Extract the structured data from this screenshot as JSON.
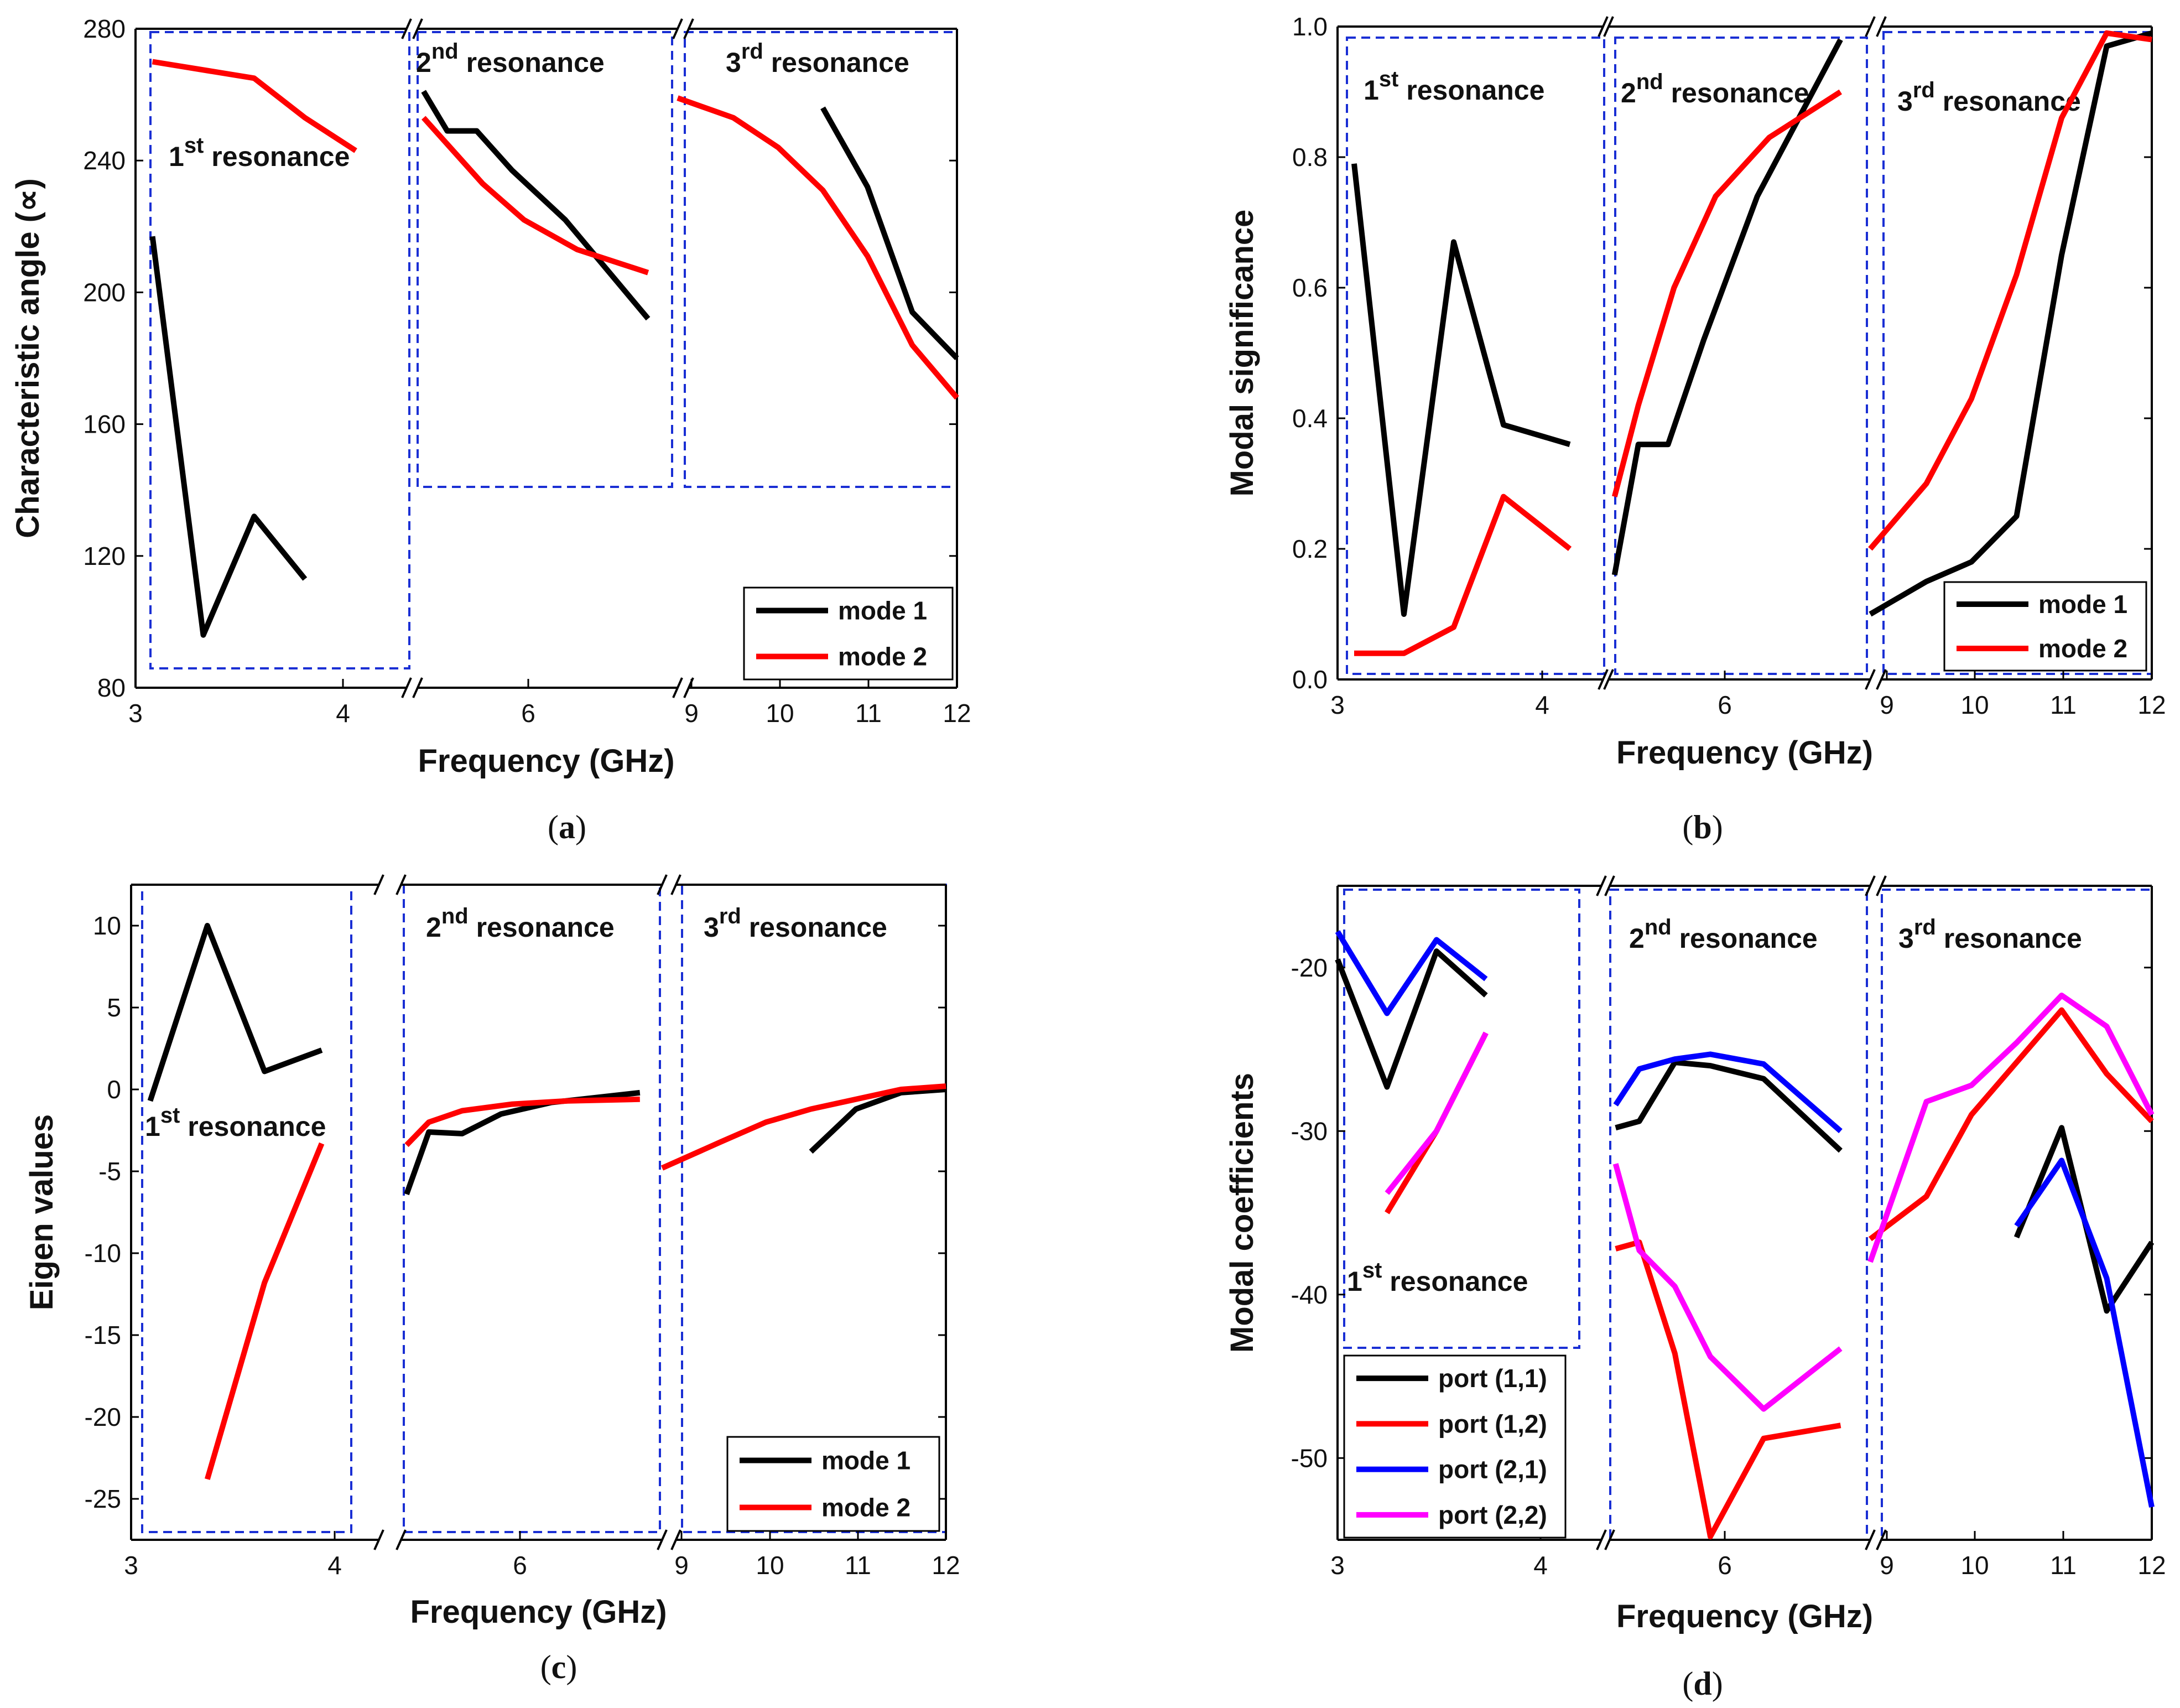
{
  "chart_data": [
    {
      "type": "line",
      "caption_letter": "a",
      "ylabel": "Characteristic angle (∝)",
      "xlabel": "Frequency (GHz)",
      "ylim": [
        80,
        280
      ],
      "yticks": [
        80,
        120,
        160,
        200,
        240,
        280
      ],
      "xticks": [
        "3",
        "4",
        "6",
        "9",
        "10",
        "11",
        "12"
      ],
      "segments": [
        [
          3,
          4.6
        ],
        [
          4.6,
          9
        ],
        [
          9,
          12
        ]
      ],
      "annotations": [
        {
          "text": "1",
          "sup": "st",
          "rest": " resonance"
        },
        {
          "text": "2",
          "sup": "nd",
          "rest": " resonance"
        },
        {
          "text": "3",
          "sup": "rd",
          "rest": " resonance"
        }
      ],
      "legend": [
        "mode 1",
        "mode 2"
      ],
      "series": [
        {
          "name": "mode 1",
          "color": "#000000",
          "points": [
            [
              3.1,
              217
            ],
            [
              3.4,
              96
            ],
            [
              3.7,
              132
            ],
            [
              4.0,
              113
            ]
          ]
        },
        {
          "name": "mode 2",
          "color": "#ff0000",
          "points": [
            [
              3.1,
              270
            ],
            [
              3.7,
              265
            ],
            [
              4.0,
              253
            ],
            [
              4.3,
              243
            ]
          ]
        },
        {
          "name": "mode 1",
          "color": "#000000",
          "points": [
            [
              4.7,
              261
            ],
            [
              5.1,
              249
            ],
            [
              5.6,
              249
            ],
            [
              6.2,
              237
            ],
            [
              7.1,
              222
            ],
            [
              8.5,
              192
            ]
          ]
        },
        {
          "name": "mode 2",
          "color": "#ff0000",
          "points": [
            [
              4.7,
              253
            ],
            [
              5.1,
              245
            ],
            [
              5.7,
              233
            ],
            [
              6.4,
              222
            ],
            [
              7.3,
              213
            ],
            [
              8.5,
              206
            ]
          ]
        },
        {
          "name": "mode 1",
          "color": "#000000",
          "points": [
            [
              10.5,
              256
            ],
            [
              11.0,
              232
            ],
            [
              11.5,
              194
            ],
            [
              12.0,
              180
            ]
          ]
        },
        {
          "name": "mode 2",
          "color": "#ff0000",
          "points": [
            [
              9.0,
              259
            ],
            [
              9.5,
              253
            ],
            [
              10.0,
              244
            ],
            [
              10.5,
              231
            ],
            [
              11.0,
              211
            ],
            [
              11.5,
              184
            ],
            [
              12.0,
              168
            ]
          ]
        }
      ]
    },
    {
      "type": "line",
      "caption_letter": "b",
      "ylabel": "Modal significance",
      "xlabel": "Frequency (GHz)",
      "ylim": [
        0.0,
        1.0
      ],
      "yticks": [
        "0.0",
        "0.2",
        "0.4",
        "0.6",
        "0.8",
        "1.0"
      ],
      "xticks": [
        "3",
        "4",
        "6",
        "9",
        "10",
        "11",
        "12"
      ],
      "segments": [
        [
          3,
          4.6
        ],
        [
          4.6,
          9
        ],
        [
          9,
          12
        ]
      ],
      "annotations": [
        {
          "text": "1",
          "sup": "st",
          "rest": " resonance"
        },
        {
          "text": "2",
          "sup": "nd",
          "rest": " resonance"
        },
        {
          "text": "3",
          "sup": "rd",
          "rest": " resonance"
        }
      ],
      "legend": [
        "mode 1",
        "mode 2"
      ],
      "series": [
        {
          "name": "mode 1",
          "color": "#000000",
          "points": [
            [
              3.1,
              0.79
            ],
            [
              3.4,
              0.1
            ],
            [
              3.7,
              0.67
            ],
            [
              4.0,
              0.39
            ],
            [
              4.4,
              0.36
            ]
          ]
        },
        {
          "name": "mode 2",
          "color": "#ff0000",
          "points": [
            [
              3.1,
              0.04
            ],
            [
              3.4,
              0.04
            ],
            [
              3.7,
              0.08
            ],
            [
              4.0,
              0.28
            ],
            [
              4.4,
              0.2
            ]
          ]
        },
        {
          "name": "mode 1",
          "color": "#000000",
          "points": [
            [
              4.7,
              0.16
            ],
            [
              5.1,
              0.36
            ],
            [
              5.6,
              0.36
            ],
            [
              6.2,
              0.52
            ],
            [
              7.1,
              0.74
            ],
            [
              8.5,
              0.98
            ]
          ]
        },
        {
          "name": "mode 2",
          "color": "#ff0000",
          "points": [
            [
              4.7,
              0.28
            ],
            [
              5.1,
              0.42
            ],
            [
              5.7,
              0.6
            ],
            [
              6.4,
              0.74
            ],
            [
              7.3,
              0.83
            ],
            [
              8.5,
              0.9
            ]
          ]
        },
        {
          "name": "mode 1",
          "color": "#000000",
          "points": [
            [
              9.0,
              0.1
            ],
            [
              9.5,
              0.15
            ],
            [
              10.0,
              0.18
            ],
            [
              10.5,
              0.25
            ],
            [
              11.0,
              0.65
            ],
            [
              11.5,
              0.97
            ],
            [
              12.0,
              0.99
            ]
          ]
        },
        {
          "name": "mode 2",
          "color": "#ff0000",
          "points": [
            [
              9.0,
              0.2
            ],
            [
              9.5,
              0.3
            ],
            [
              10.0,
              0.43
            ],
            [
              10.5,
              0.62
            ],
            [
              11.0,
              0.86
            ],
            [
              11.5,
              0.99
            ],
            [
              12.0,
              0.98
            ]
          ]
        }
      ]
    },
    {
      "type": "line",
      "caption_letter": "c",
      "ylabel": "Eigen values",
      "xlabel": "Frequency (GHz)",
      "ylim": [
        -27.5,
        12.5
      ],
      "yticks": [
        "-25",
        "-20",
        "-15",
        "-10",
        "-5",
        "0",
        "5",
        "10"
      ],
      "xticks": [
        "3",
        "4",
        "6",
        "9",
        "10",
        "11",
        "12"
      ],
      "segments": [
        [
          3,
          4.3
        ],
        [
          4.3,
          9
        ],
        [
          9,
          12
        ]
      ],
      "annotations": [
        {
          "text": "1",
          "sup": "st",
          "rest": " resonance"
        },
        {
          "text": "2",
          "sup": "nd",
          "rest": " resonance"
        },
        {
          "text": "3",
          "sup": "rd",
          "rest": " resonance"
        }
      ],
      "legend": [
        "mode 1",
        "mode 2"
      ],
      "series": [
        {
          "name": "mode 1",
          "color": "#000000",
          "points": [
            [
              3.1,
              -0.7
            ],
            [
              3.4,
              10.0
            ],
            [
              3.7,
              1.1
            ],
            [
              4.0,
              2.4
            ]
          ]
        },
        {
          "name": "mode 2",
          "color": "#ff0000",
          "points": [
            [
              3.4,
              -23.8
            ],
            [
              3.7,
              -11.8
            ],
            [
              4.0,
              -3.3
            ]
          ]
        },
        {
          "name": "mode 1",
          "color": "#000000",
          "points": [
            [
              4.4,
              -6.4
            ],
            [
              4.8,
              -2.6
            ],
            [
              5.4,
              -2.7
            ],
            [
              6.1,
              -1.5
            ],
            [
              7.0,
              -0.8
            ],
            [
              8.6,
              -0.2
            ]
          ]
        },
        {
          "name": "mode 2",
          "color": "#ff0000",
          "points": [
            [
              4.4,
              -3.4
            ],
            [
              4.8,
              -2.0
            ],
            [
              5.4,
              -1.3
            ],
            [
              6.3,
              -0.9
            ],
            [
              7.3,
              -0.7
            ],
            [
              8.6,
              -0.6
            ]
          ]
        },
        {
          "name": "mode 1",
          "color": "#000000",
          "points": [
            [
              10.5,
              -3.8
            ],
            [
              11.0,
              -1.2
            ],
            [
              11.5,
              -0.2
            ],
            [
              12.0,
              0.0
            ]
          ]
        },
        {
          "name": "mode 2",
          "color": "#ff0000",
          "points": [
            [
              9.0,
              -4.8
            ],
            [
              9.5,
              -3.2
            ],
            [
              10.0,
              -2.0
            ],
            [
              10.5,
              -1.2
            ],
            [
              11.0,
              -0.6
            ],
            [
              11.5,
              0.0
            ],
            [
              12.0,
              0.2
            ]
          ]
        }
      ]
    },
    {
      "type": "line",
      "caption_letter": "d",
      "ylabel": "Modal coefficients",
      "xlabel": "Frequency (GHz)",
      "ylim": [
        -55,
        -15
      ],
      "yticks": [
        "-50",
        "-40",
        "-30",
        "-20"
      ],
      "xticks": [
        "3",
        "4",
        "6",
        "9",
        "10",
        "11",
        "12"
      ],
      "segments": [
        [
          3,
          4.6
        ],
        [
          4.6,
          9
        ],
        [
          9,
          12
        ]
      ],
      "annotations": [
        {
          "text": "1",
          "sup": "st",
          "rest": " resonance"
        },
        {
          "text": "2",
          "sup": "nd",
          "rest": " resonance"
        },
        {
          "text": "3",
          "sup": "rd",
          "rest": " resonance"
        }
      ],
      "legend": [
        "port (1,1)",
        "port (1,2)",
        "port (2,1)",
        "port (2,2)"
      ],
      "series": [
        {
          "name": "port (1,1)",
          "color": "#000000",
          "points": [
            [
              3.0,
              -19.5
            ],
            [
              3.3,
              -27.3
            ],
            [
              3.6,
              -19.0
            ],
            [
              3.9,
              -21.7
            ]
          ]
        },
        {
          "name": "port (1,2)",
          "color": "#ff0000",
          "points": [
            [
              3.3,
              -35.0
            ],
            [
              3.6,
              -30.0
            ],
            [
              3.9,
              -24.0
            ]
          ]
        },
        {
          "name": "port (2,1)",
          "color": "#0000ff",
          "points": [
            [
              3.0,
              -17.8
            ],
            [
              3.3,
              -22.8
            ],
            [
              3.6,
              -18.3
            ],
            [
              3.9,
              -20.7
            ]
          ]
        },
        {
          "name": "port (2,2)",
          "color": "#ff00ff",
          "points": [
            [
              3.3,
              -33.8
            ],
            [
              3.6,
              -30.0
            ],
            [
              3.9,
              -24.0
            ]
          ]
        },
        {
          "name": "port (1,1)",
          "color": "#000000",
          "points": [
            [
              4.7,
              -29.8
            ],
            [
              5.1,
              -29.4
            ],
            [
              5.7,
              -25.8
            ],
            [
              6.3,
              -26.0
            ],
            [
              7.2,
              -26.8
            ],
            [
              8.5,
              -31.2
            ]
          ]
        },
        {
          "name": "port (1,2)",
          "color": "#ff0000",
          "points": [
            [
              4.7,
              -37.2
            ],
            [
              5.1,
              -36.8
            ],
            [
              5.7,
              -43.6
            ],
            [
              6.3,
              -54.8
            ],
            [
              7.2,
              -48.8
            ],
            [
              8.5,
              -48.0
            ]
          ]
        },
        {
          "name": "port (2,1)",
          "color": "#0000ff",
          "points": [
            [
              4.7,
              -28.4
            ],
            [
              5.1,
              -26.2
            ],
            [
              5.7,
              -25.6
            ],
            [
              6.3,
              -25.3
            ],
            [
              7.2,
              -25.9
            ],
            [
              8.5,
              -30.0
            ]
          ]
        },
        {
          "name": "port (2,2)",
          "color": "#ff00ff",
          "points": [
            [
              4.7,
              -32.0
            ],
            [
              5.1,
              -37.3
            ],
            [
              5.7,
              -39.5
            ],
            [
              6.3,
              -43.8
            ],
            [
              7.2,
              -47.0
            ],
            [
              8.5,
              -43.3
            ]
          ]
        },
        {
          "name": "port (1,1)",
          "color": "#000000",
          "points": [
            [
              10.5,
              -36.5
            ],
            [
              11.0,
              -29.8
            ],
            [
              11.5,
              -41.0
            ],
            [
              12.0,
              -36.8
            ]
          ]
        },
        {
          "name": "port (1,2)",
          "color": "#ff0000",
          "points": [
            [
              9.0,
              -36.6
            ],
            [
              9.5,
              -34.0
            ],
            [
              10.0,
              -29.0
            ],
            [
              10.5,
              -25.8
            ],
            [
              11.0,
              -22.6
            ],
            [
              11.5,
              -26.5
            ],
            [
              12.0,
              -29.4
            ]
          ]
        },
        {
          "name": "port (2,1)",
          "color": "#0000ff",
          "points": [
            [
              10.5,
              -35.8
            ],
            [
              11.0,
              -31.8
            ],
            [
              11.5,
              -39.0
            ],
            [
              12.0,
              -53.0
            ]
          ]
        },
        {
          "name": "port (2,2)",
          "color": "#ff00ff",
          "points": [
            [
              9.0,
              -38.0
            ],
            [
              9.5,
              -28.2
            ],
            [
              10.0,
              -27.2
            ],
            [
              10.5,
              -24.6
            ],
            [
              11.0,
              -21.7
            ],
            [
              11.5,
              -23.6
            ],
            [
              12.0,
              -29.0
            ]
          ]
        }
      ]
    }
  ]
}
